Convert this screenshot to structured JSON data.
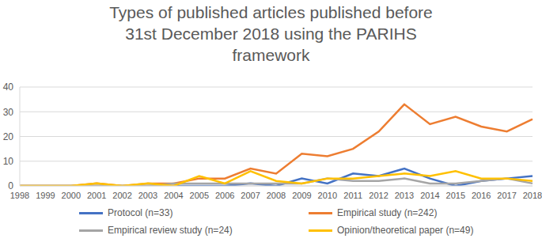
{
  "chart_data": {
    "type": "line",
    "title": "Types of published articles published before 31st December 2018 using the PARIHS framework",
    "categories": [
      "1998",
      "1999",
      "2000",
      "2001",
      "2002",
      "2003",
      "2004",
      "2005",
      "2006",
      "2007",
      "2008",
      "2009",
      "2010",
      "2011",
      "2012",
      "2013",
      "2014",
      "2015",
      "2016",
      "2017",
      "2018"
    ],
    "series": [
      {
        "name": "Protocol (n=33)",
        "color": "#4472c4",
        "values": [
          0,
          0,
          0,
          0,
          0,
          0,
          0,
          0,
          0,
          1,
          0,
          3,
          1,
          5,
          4,
          7,
          3,
          0,
          2,
          3,
          4
        ]
      },
      {
        "name": "Empirical study (n=242)",
        "color": "#ed7d31",
        "values": [
          0,
          0,
          0,
          1,
          0,
          1,
          1,
          3,
          3,
          7,
          5,
          13,
          12,
          15,
          22,
          33,
          25,
          28,
          24,
          22,
          27
        ]
      },
      {
        "name": "Empirical review study (n=24)",
        "color": "#a5a5a5",
        "values": [
          0,
          0,
          0,
          0,
          0,
          0,
          1,
          1,
          1,
          1,
          1,
          1,
          3,
          2,
          2,
          3,
          1,
          1,
          2,
          3,
          1
        ]
      },
      {
        "name": "Opinion/theoretical paper (n=49)",
        "color": "#ffc000",
        "values": [
          0,
          0,
          0,
          1,
          0,
          1,
          0,
          4,
          1,
          6,
          2,
          1,
          3,
          3,
          4,
          5,
          4,
          6,
          3,
          3,
          2
        ]
      }
    ],
    "ylim": [
      0,
      40
    ],
    "yticks": [
      0,
      10,
      20,
      30,
      40
    ],
    "grid": true,
    "legend": "bottom"
  }
}
